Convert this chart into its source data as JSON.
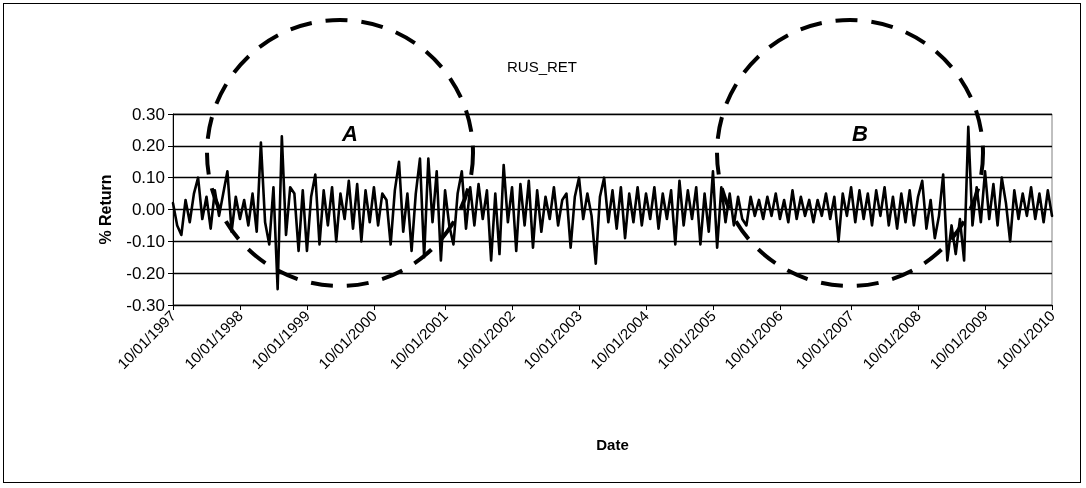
{
  "chart_data": {
    "type": "line",
    "title": "RUS_RET",
    "xlabel": "Date",
    "ylabel": "% Return",
    "annotations": [
      "A",
      "B"
    ],
    "categories": [
      "10/01/1997",
      null,
      null,
      null,
      null,
      null,
      null,
      null,
      null,
      null,
      null,
      null,
      null,
      null,
      null,
      null,
      "10/01/1998",
      null,
      null,
      null,
      null,
      null,
      null,
      null,
      null,
      null,
      null,
      null,
      null,
      null,
      null,
      null,
      "10/01/1999",
      null,
      null,
      null,
      null,
      null,
      null,
      null,
      null,
      null,
      null,
      null,
      null,
      null,
      null,
      null,
      "10/01/2000",
      null,
      null,
      null,
      null,
      null,
      null,
      null,
      null,
      null,
      null,
      null,
      null,
      null,
      null,
      null,
      null,
      "10/01/2001",
      null,
      null,
      null,
      null,
      null,
      null,
      null,
      null,
      null,
      null,
      null,
      null,
      null,
      null,
      null,
      "10/01/2002",
      null,
      null,
      null,
      null,
      null,
      null,
      null,
      null,
      null,
      null,
      null,
      null,
      null,
      null,
      null,
      "10/01/2003",
      null,
      null,
      null,
      null,
      null,
      null,
      null,
      null,
      null,
      null,
      null,
      null,
      null,
      null,
      null,
      "10/01/2004",
      null,
      null,
      null,
      null,
      null,
      null,
      null,
      null,
      null,
      null,
      null,
      null,
      null,
      null,
      null,
      "10/01/2005",
      null,
      null,
      null,
      null,
      null,
      null,
      null,
      null,
      null,
      null,
      null,
      null,
      null,
      null,
      null,
      "10/01/2006",
      null,
      null,
      null,
      null,
      null,
      null,
      null,
      null,
      null,
      null,
      null,
      null,
      null,
      null,
      null,
      null,
      "10/01/2007",
      null,
      null,
      null,
      null,
      null,
      null,
      null,
      null,
      null,
      null,
      null,
      null,
      null,
      null,
      null,
      "10/01/2008",
      null,
      null,
      null,
      null,
      null,
      null,
      null,
      null,
      null,
      null,
      null,
      null,
      null,
      null,
      null,
      "10/01/2009",
      null,
      null,
      null,
      null,
      null,
      null,
      null,
      null,
      null,
      null,
      null,
      null,
      null,
      null,
      null,
      "10/01/2010"
    ],
    "series": [
      {
        "color": "#000000",
        "values": [
          0.02,
          -0.05,
          -0.08,
          0.03,
          -0.04,
          0.05,
          0.1,
          -0.03,
          0.04,
          -0.06,
          0.06,
          -0.02,
          0.05,
          0.12,
          -0.07,
          0.04,
          -0.03,
          0.03,
          -0.05,
          0.05,
          -0.07,
          0.21,
          -0.04,
          -0.11,
          0.07,
          -0.25,
          0.23,
          -0.08,
          0.07,
          0.05,
          -0.13,
          0.06,
          -0.13,
          0.04,
          0.11,
          -0.11,
          0.06,
          -0.05,
          0.07,
          -0.1,
          0.05,
          -0.03,
          0.09,
          -0.06,
          0.08,
          -0.1,
          0.06,
          -0.04,
          0.07,
          -0.05,
          0.05,
          0.03,
          -0.11,
          0.06,
          0.15,
          -0.07,
          0.05,
          -0.13,
          0.05,
          0.16,
          -0.15,
          0.16,
          -0.04,
          0.12,
          -0.16,
          0.06,
          -0.05,
          -0.11,
          0.05,
          0.12,
          -0.06,
          0.07,
          -0.05,
          0.08,
          -0.03,
          0.06,
          -0.16,
          0.05,
          -0.14,
          0.14,
          -0.04,
          0.07,
          -0.13,
          0.08,
          -0.05,
          0.09,
          -0.12,
          0.06,
          -0.07,
          0.04,
          -0.03,
          0.07,
          -0.05,
          0.03,
          0.05,
          -0.12,
          0.04,
          0.1,
          -0.03,
          0.05,
          -0.02,
          -0.17,
          0.04,
          0.1,
          -0.04,
          0.06,
          -0.06,
          0.07,
          -0.09,
          0.05,
          -0.04,
          0.07,
          -0.05,
          0.05,
          -0.03,
          0.07,
          -0.06,
          0.05,
          -0.03,
          0.06,
          -0.11,
          0.09,
          -0.05,
          0.06,
          -0.03,
          0.07,
          -0.11,
          0.05,
          -0.07,
          0.12,
          -0.12,
          0.07,
          -0.04,
          0.05,
          -0.05,
          0.04,
          -0.03,
          -0.05,
          0.04,
          -0.02,
          0.03,
          -0.03,
          0.04,
          -0.02,
          0.05,
          -0.03,
          0.03,
          -0.04,
          0.06,
          -0.03,
          0.04,
          -0.02,
          0.03,
          -0.04,
          0.03,
          -0.02,
          0.05,
          -0.03,
          0.04,
          -0.1,
          0.05,
          -0.02,
          0.07,
          -0.04,
          0.06,
          -0.03,
          0.05,
          -0.05,
          0.06,
          -0.02,
          0.07,
          -0.05,
          0.04,
          -0.06,
          0.05,
          -0.04,
          0.06,
          -0.05,
          0.04,
          0.09,
          -0.06,
          0.03,
          -0.09,
          -0.02,
          0.11,
          -0.16,
          -0.05,
          -0.14,
          -0.03,
          -0.16,
          0.26,
          -0.05,
          0.07,
          -0.04,
          0.12,
          -0.03,
          0.08,
          -0.05,
          0.1,
          0.02,
          -0.1,
          0.06,
          -0.03,
          0.05,
          -0.02,
          0.07,
          -0.03,
          0.05,
          -0.04,
          0.06,
          -0.02
        ]
      }
    ],
    "ylim": [
      -0.3,
      0.3
    ],
    "yticks": [
      {
        "value": -0.3,
        "label": "-0.30"
      },
      {
        "value": -0.2,
        "label": "-0.20"
      },
      {
        "value": -0.1,
        "label": "-0.10"
      },
      {
        "value": 0,
        "label": "0.00"
      },
      {
        "value": 0.1,
        "label": "0.10"
      },
      {
        "value": 0.2,
        "label": "0.20"
      },
      {
        "value": 0.3,
        "label": "0.30"
      }
    ],
    "grid": "y",
    "marker": "none",
    "line_style": "solid"
  }
}
